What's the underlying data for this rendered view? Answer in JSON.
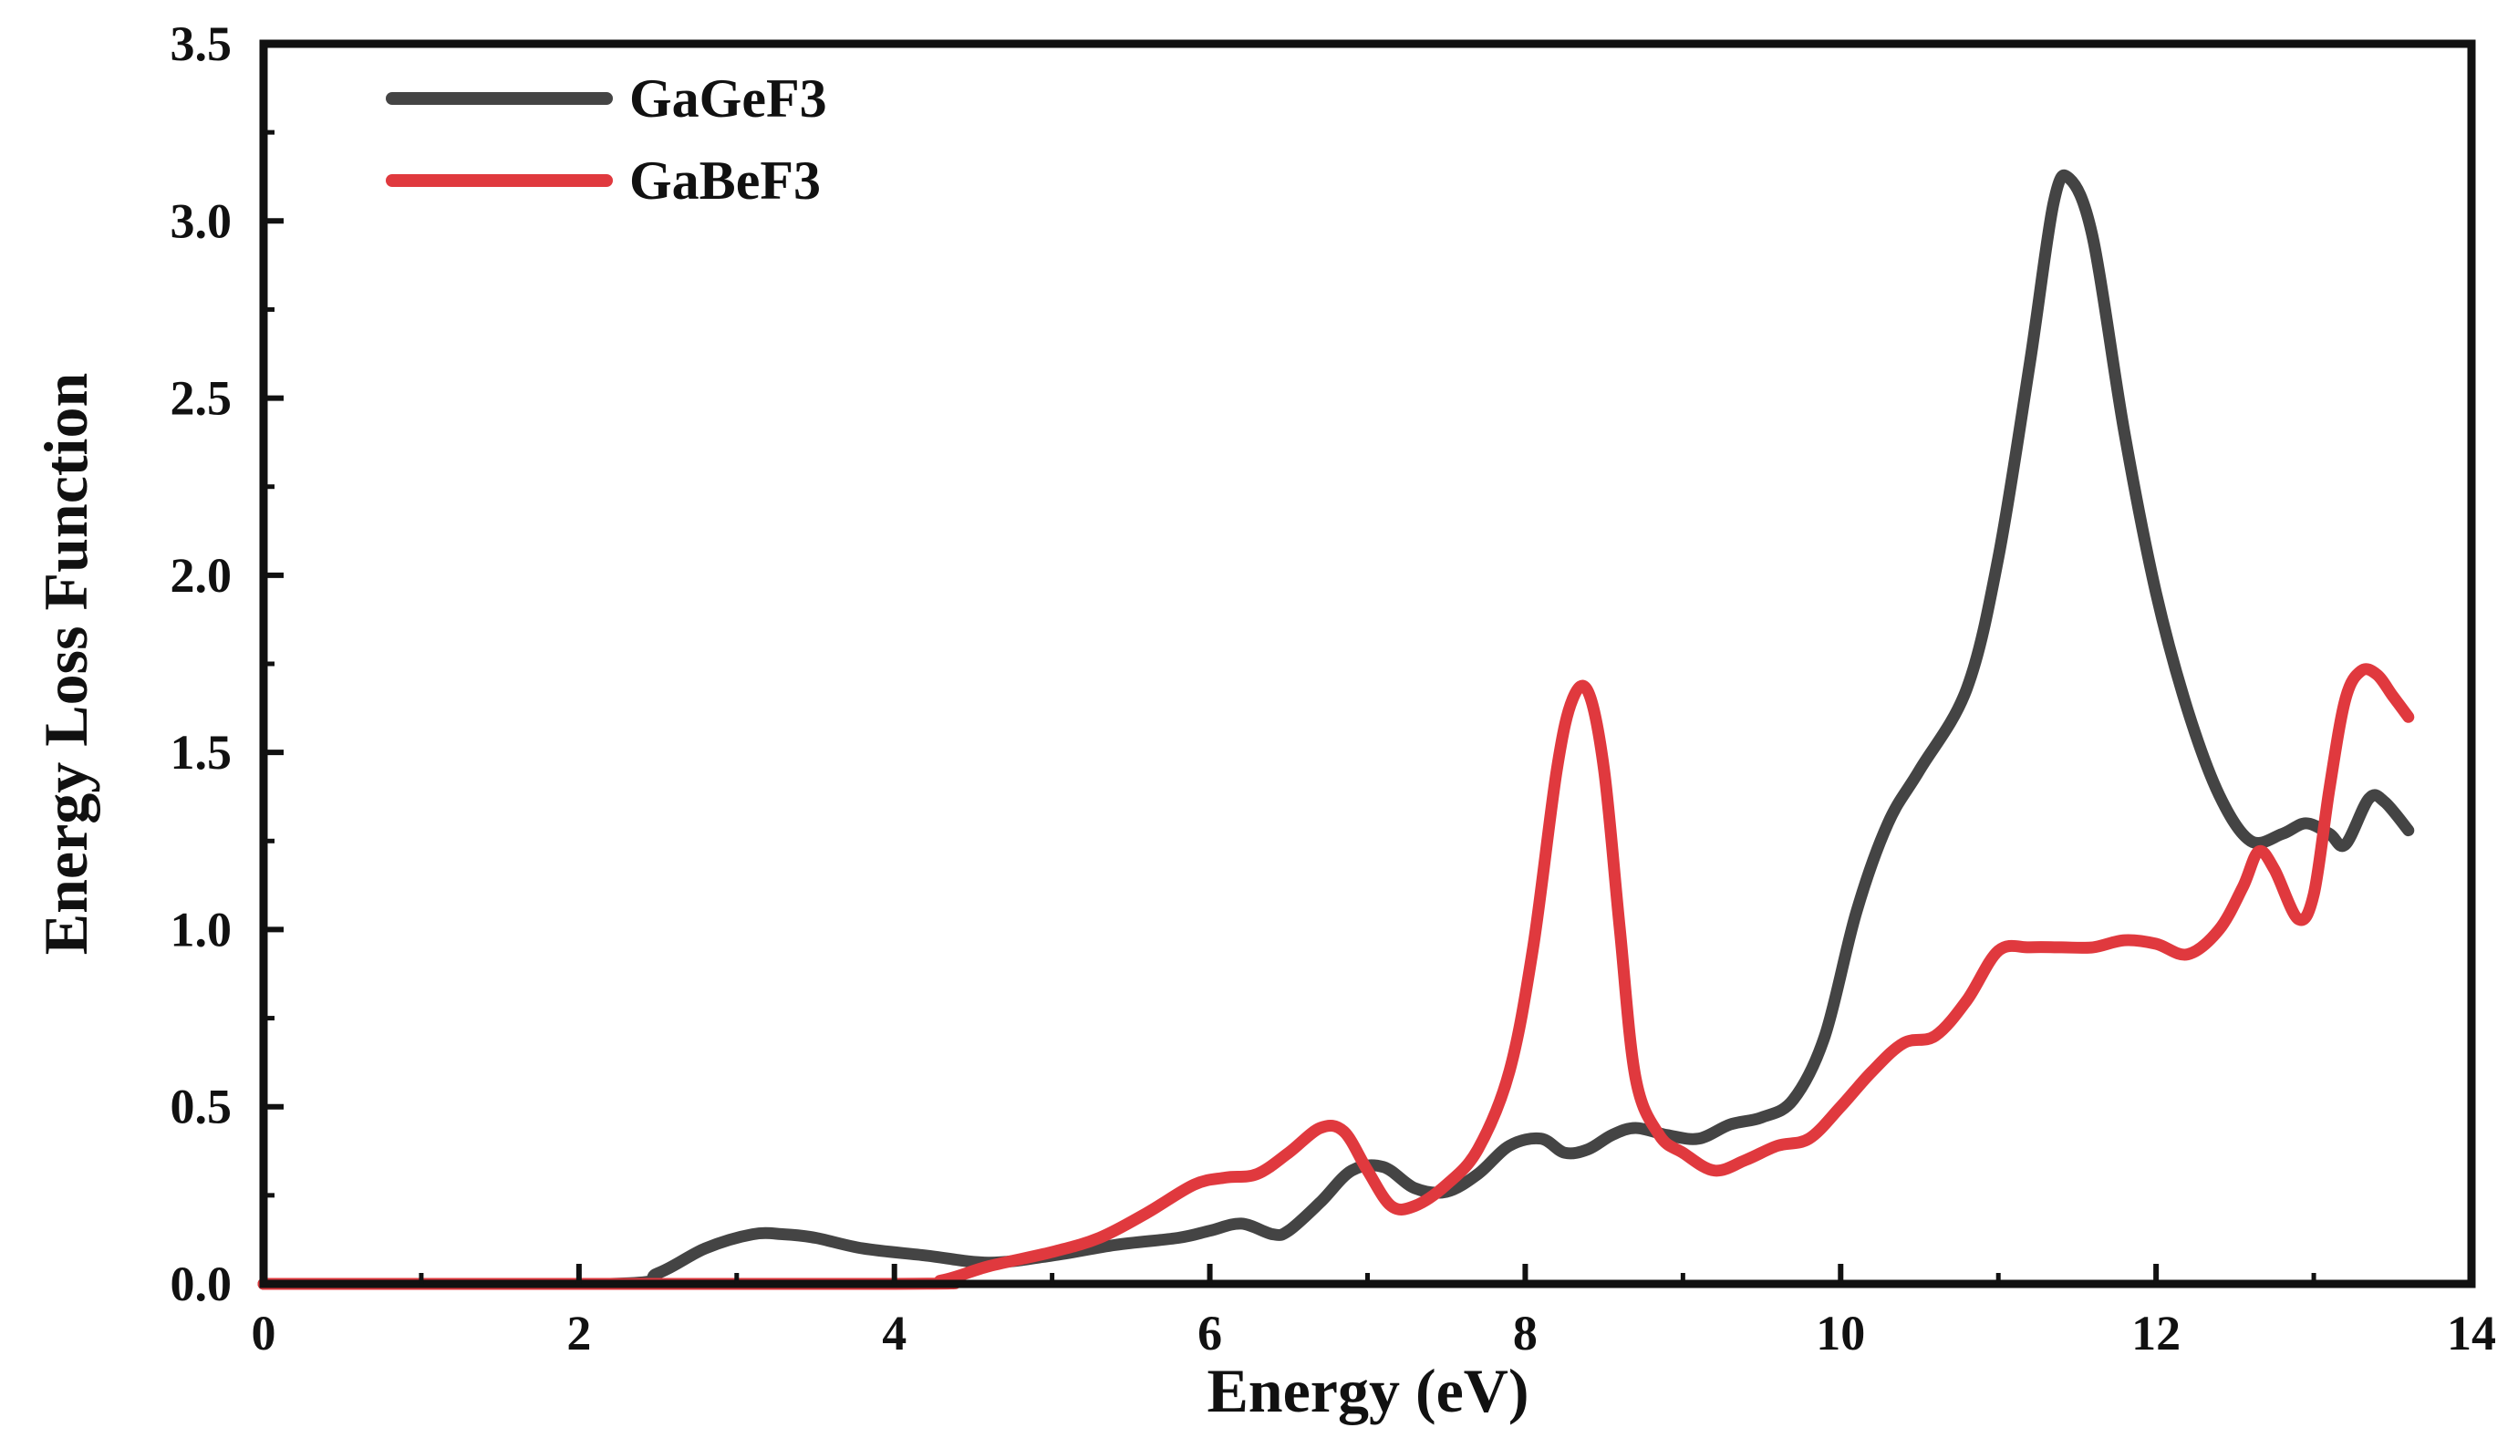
{
  "chart_data": {
    "type": "line",
    "title": "",
    "xlabel": "Energy (eV)",
    "ylabel": "Energy Loss Function",
    "xlim": [
      0,
      14
    ],
    "ylim": [
      0,
      3.5
    ],
    "x_ticks": [
      0,
      2,
      4,
      6,
      8,
      10,
      12,
      14
    ],
    "y_ticks": [
      0.0,
      0.5,
      1.0,
      1.5,
      2.0,
      2.5,
      3.0,
      3.5
    ],
    "x_tick_labels": [
      "0",
      "2",
      "4",
      "6",
      "8",
      "10",
      "12",
      "14"
    ],
    "y_tick_labels": [
      "0.0",
      "0.5",
      "1.0",
      "1.5",
      "2.0",
      "2.5",
      "3.0",
      "3.5"
    ],
    "grid": false,
    "legend_position": "top-left",
    "series": [
      {
        "name": "GaGeF3",
        "color": "#444444",
        "x": [
          0,
          2.2,
          2.5,
          2.8,
          3.1,
          3.3,
          3.5,
          3.8,
          4.2,
          4.6,
          5.0,
          5.4,
          5.8,
          6.0,
          6.2,
          6.4,
          6.5,
          6.7,
          6.9,
          7.1,
          7.3,
          7.5,
          7.7,
          7.9,
          8.1,
          8.25,
          8.4,
          8.55,
          8.7,
          8.9,
          9.1,
          9.3,
          9.5,
          9.7,
          9.9,
          10.1,
          10.3,
          10.5,
          10.8,
          11.0,
          11.2,
          11.35,
          11.45,
          11.6,
          11.8,
          12.0,
          12.2,
          12.4,
          12.6,
          12.8,
          12.95,
          13.1,
          13.2,
          13.35,
          13.45,
          13.6
        ],
        "y": [
          0.0,
          0.0,
          0.03,
          0.1,
          0.14,
          0.14,
          0.13,
          0.1,
          0.08,
          0.06,
          0.08,
          0.11,
          0.13,
          0.15,
          0.17,
          0.14,
          0.15,
          0.23,
          0.32,
          0.33,
          0.27,
          0.26,
          0.31,
          0.39,
          0.41,
          0.37,
          0.38,
          0.42,
          0.44,
          0.42,
          0.41,
          0.45,
          0.47,
          0.52,
          0.7,
          1.05,
          1.3,
          1.45,
          1.68,
          2.05,
          2.6,
          3.05,
          3.12,
          2.95,
          2.4,
          1.95,
          1.62,
          1.38,
          1.25,
          1.27,
          1.3,
          1.27,
          1.24,
          1.37,
          1.36,
          1.28
        ]
      },
      {
        "name": "GaBeF3",
        "color": "#e0393e",
        "x": [
          0,
          4.0,
          4.3,
          4.6,
          5.0,
          5.3,
          5.6,
          5.9,
          6.1,
          6.3,
          6.5,
          6.7,
          6.85,
          7.0,
          7.15,
          7.3,
          7.5,
          7.7,
          7.9,
          8.05,
          8.2,
          8.3,
          8.4,
          8.5,
          8.6,
          8.7,
          8.85,
          9.0,
          9.2,
          9.4,
          9.6,
          9.8,
          10.0,
          10.2,
          10.4,
          10.6,
          10.8,
          11.0,
          11.2,
          11.4,
          11.6,
          11.8,
          12.0,
          12.2,
          12.4,
          12.55,
          12.65,
          12.75,
          12.9,
          13.0,
          13.1,
          13.2,
          13.3,
          13.4,
          13.5,
          13.6
        ],
        "y": [
          0.0,
          0.0,
          0.01,
          0.05,
          0.09,
          0.13,
          0.2,
          0.28,
          0.3,
          0.31,
          0.37,
          0.44,
          0.43,
          0.32,
          0.22,
          0.22,
          0.28,
          0.38,
          0.6,
          0.95,
          1.45,
          1.65,
          1.67,
          1.45,
          1.0,
          0.58,
          0.42,
          0.37,
          0.32,
          0.35,
          0.39,
          0.41,
          0.5,
          0.6,
          0.68,
          0.7,
          0.8,
          0.94,
          0.95,
          0.95,
          0.95,
          0.97,
          0.96,
          0.93,
          1.0,
          1.12,
          1.22,
          1.17,
          1.03,
          1.1,
          1.4,
          1.65,
          1.73,
          1.72,
          1.66,
          1.6
        ]
      }
    ]
  }
}
